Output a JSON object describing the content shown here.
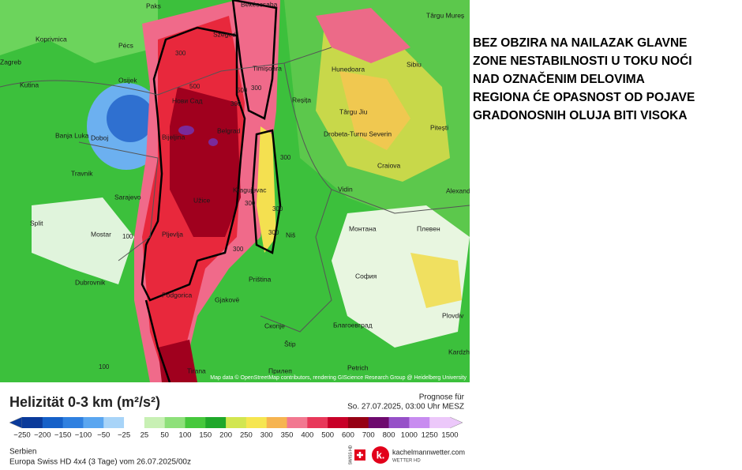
{
  "map": {
    "cities": [
      "Paks",
      "Békéscsaba",
      "Târgu Mureș",
      "Koprivnica",
      "Pécs",
      "Szeged",
      "Zagreb",
      "Sibiu",
      "Hunedoara",
      "Kutina",
      "Osijek",
      "Timișoara",
      "Нови Сад",
      "Reșița",
      "Târgu Jiu",
      "Banja Luka",
      "Doboj",
      "Bijeljina",
      "Belgrad",
      "Drobeta-Turnu Severin",
      "Pitești",
      "Travnik",
      "Craiova",
      "Sarajevo",
      "Kragujevac",
      "Užice",
      "Vidin",
      "Alexandria",
      "Split",
      "Mostar",
      "Pljevlja",
      "Niš",
      "Монтана",
      "Плевен",
      "Dubrovnik",
      "Priština",
      "София",
      "Podgorica",
      "Gjakovë",
      "Скопје",
      "Plovdiv",
      "Благоевград",
      "Štip",
      "Kardzhali",
      "Tirana",
      "Прилеп",
      "Petrich"
    ],
    "contour_labels": [
      "500",
      "300",
      "300",
      "300",
      "500",
      "300",
      "300",
      "300",
      "300",
      "100",
      "100",
      "300"
    ],
    "attribution": "Map data © OpenStreetMap contributors, rendering GIScience Research Group @ Heidelberg University"
  },
  "annotation": {
    "lines": [
      "BEZ OBZIRA NA NAILAZAK GLAVNE",
      "ZONE NESTABILNOSTI U TOKU NOĆI",
      "NAD OZNAČENIM DELOVIMA",
      "REGIONA ĆE OPASNOST OD POJAVE",
      "GRADONOSNIH OLUJA BITI VISOKA"
    ]
  },
  "legend": {
    "title": "Helizität 0-3 km (m²/s²)",
    "ticks": [
      "−250",
      "−200",
      "−150",
      "−100",
      "−50",
      "−25",
      "25",
      "50",
      "100",
      "150",
      "200",
      "250",
      "300",
      "350",
      "400",
      "500",
      "600",
      "700",
      "800",
      "1000",
      "1250",
      "1500"
    ],
    "colors": [
      "#0a3a9a",
      "#1560c8",
      "#2f80e0",
      "#5aa6f0",
      "#a8d4f8",
      "#ffffff",
      "#c8f0b4",
      "#8ee07a",
      "#46c83c",
      "#1fa82a",
      "#d2e650",
      "#f6e650",
      "#f6b450",
      "#f27890",
      "#e8385a",
      "#c80028",
      "#960014",
      "#6e0a6e",
      "#9650c8",
      "#c88cf0",
      "#ecc8fa"
    ]
  },
  "forecast": {
    "label": "Prognose für",
    "time": "So. 27.07.2025, 03:00 Uhr MESZ"
  },
  "footer": {
    "region": "Serbien",
    "model": "Europa Swiss HD 4x4 (3 Tage) vom 26.07.2025/00z"
  },
  "logo": {
    "badge": "SWISS HD",
    "name": "kachelmannwetter.com",
    "sub": "WETTER HD"
  }
}
